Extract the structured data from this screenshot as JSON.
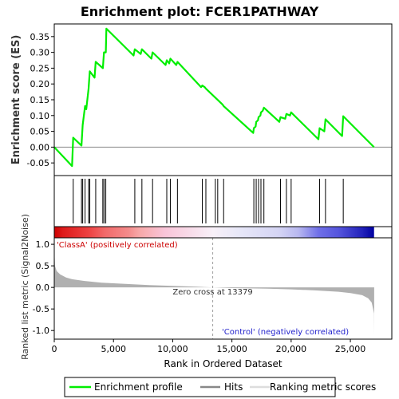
{
  "title": "Enrichment plot: FCER1PATHWAY",
  "colors": {
    "profile": "#00ee00",
    "hits": "#000000",
    "metric_fill": "#b0b0b0",
    "zero_cross_line": "#a0a0a0",
    "class_a_label": "#cc0000",
    "control_label": "#2222cc",
    "frame": "#000000"
  },
  "chart_data": [
    {
      "type": "line",
      "name": "enrichment-profile",
      "ylabel": "Enrichment score (ES)",
      "xlim": [
        0,
        28500
      ],
      "ylim": [
        -0.09,
        0.39
      ],
      "yticks": [
        -0.05,
        0.0,
        0.05,
        0.1,
        0.15,
        0.2,
        0.25,
        0.3,
        0.35
      ],
      "ytick_labels": [
        "-0.05",
        "0.00",
        "0.05",
        "0.10",
        "0.15",
        "0.20",
        "0.25",
        "0.30",
        "0.35"
      ],
      "x": [
        0,
        1500,
        1600,
        2300,
        2400,
        2600,
        2700,
        2900,
        3000,
        3400,
        3500,
        4100,
        4200,
        4350,
        4400,
        6700,
        6800,
        7300,
        7400,
        8200,
        8300,
        9400,
        9500,
        9700,
        9800,
        10300,
        10400,
        12400,
        12500,
        12700,
        12800,
        14200,
        14300,
        16800,
        16850,
        17000,
        17050,
        17200,
        17250,
        17400,
        17450,
        17600,
        17700,
        19000,
        19100,
        19500,
        19600,
        19900,
        20000,
        22300,
        22400,
        22800,
        22900,
        24300,
        24400,
        27000
      ],
      "y": [
        0.0,
        -0.06,
        0.03,
        0.005,
        0.07,
        0.13,
        0.12,
        0.185,
        0.24,
        0.22,
        0.27,
        0.25,
        0.3,
        0.3,
        0.375,
        0.29,
        0.31,
        0.295,
        0.31,
        0.28,
        0.3,
        0.26,
        0.275,
        0.265,
        0.28,
        0.26,
        0.27,
        0.19,
        0.195,
        0.19,
        0.185,
        0.135,
        0.13,
        0.045,
        0.06,
        0.065,
        0.08,
        0.085,
        0.095,
        0.1,
        0.11,
        0.115,
        0.125,
        0.08,
        0.095,
        0.09,
        0.105,
        0.1,
        0.11,
        0.025,
        0.06,
        0.05,
        0.088,
        0.035,
        0.098,
        0.0
      ]
    },
    {
      "type": "scatter",
      "name": "hits",
      "x": [
        1600,
        2300,
        2400,
        2600,
        2900,
        3000,
        3500,
        4100,
        4200,
        4350,
        6800,
        7400,
        8300,
        9500,
        9800,
        10400,
        12500,
        12800,
        13600,
        13800,
        14300,
        16850,
        17050,
        17250,
        17450,
        17700,
        19100,
        19600,
        20000,
        22400,
        22900,
        24400
      ]
    },
    {
      "type": "area",
      "name": "ranking-metric",
      "ylabel": "Ranked list metric (Signal2Noise)",
      "xlabel": "Rank in Ordered Dataset",
      "xlim": [
        0,
        28500
      ],
      "ylim": [
        -1.2,
        1.15
      ],
      "xticks": [
        0,
        5000,
        10000,
        15000,
        20000,
        25000
      ],
      "xtick_labels": [
        "0",
        "5,000",
        "10,000",
        "15,000",
        "20,000",
        "25,000"
      ],
      "yticks": [
        -1.0,
        -0.5,
        0.0,
        0.5,
        1.0
      ],
      "ytick_labels": [
        "-1.0",
        "-0.5",
        "0.0",
        "0.5",
        "1.0"
      ],
      "x": [
        0,
        60,
        200,
        500,
        1000,
        1500,
        2500,
        4000,
        6000,
        8000,
        10000,
        12000,
        13379,
        15000,
        18000,
        20000,
        22000,
        24000,
        25000,
        26000,
        26500,
        26800,
        27000,
        27010
      ],
      "y": [
        0.95,
        0.5,
        0.38,
        0.3,
        0.23,
        0.19,
        0.15,
        0.11,
        0.08,
        0.055,
        0.035,
        0.015,
        0.0,
        -0.015,
        -0.03,
        -0.045,
        -0.07,
        -0.1,
        -0.13,
        -0.18,
        -0.25,
        -0.35,
        -0.6,
        -1.1
      ]
    }
  ],
  "zero_cross": {
    "x": 13379,
    "label": "Zero cross at 13379"
  },
  "class_a_label": "'ClassA' (positively correlated)",
  "control_label": "'Control' (negatively correlated)",
  "heatmap_bar": {
    "xlim": [
      0,
      27000
    ],
    "stops": [
      {
        "x": 0,
        "color": "#cc0000"
      },
      {
        "x": 700,
        "color": "#dd1a1a"
      },
      {
        "x": 3000,
        "color": "#ee4444"
      },
      {
        "x": 4300,
        "color": "#f26a6a"
      },
      {
        "x": 6300,
        "color": "#f48c8c"
      },
      {
        "x": 7200,
        "color": "#f7a8a8"
      },
      {
        "x": 9300,
        "color": "#f9c4d8"
      },
      {
        "x": 13379,
        "color": "#f8f0f8"
      },
      {
        "x": 15500,
        "color": "#e8e8f8"
      },
      {
        "x": 19000,
        "color": "#d4d4f4"
      },
      {
        "x": 20600,
        "color": "#b8b8f0"
      },
      {
        "x": 22300,
        "color": "#7070e8"
      },
      {
        "x": 24000,
        "color": "#5555dd"
      },
      {
        "x": 26000,
        "color": "#2222bb"
      },
      {
        "x": 27000,
        "color": "#0000a0"
      }
    ]
  },
  "legend": {
    "items": [
      {
        "label": "Enrichment profile",
        "kind": "profile"
      },
      {
        "label": "Hits",
        "kind": "hits"
      },
      {
        "label": "Ranking metric scores",
        "kind": "metric"
      }
    ]
  }
}
